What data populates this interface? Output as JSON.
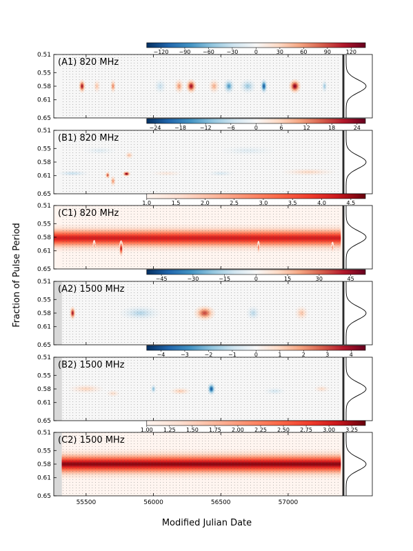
{
  "figure": {
    "xlabel": "Modified Julian Date",
    "ylabel": "Fraction of Pulse Period"
  },
  "chart_data": [
    {
      "type": "heatmap",
      "panel": "A1",
      "label": "(A1) 820 MHz",
      "colormap": "diverging",
      "colors": [
        "#053061",
        "#f7f7f7",
        "#67001f"
      ],
      "cbar_ticks": [
        "−120",
        "−90",
        "−60",
        "−30",
        "0",
        "30",
        "60",
        "90",
        "120"
      ],
      "cbar_range": [
        -138,
        138
      ],
      "cbar_start_mjd": 55950,
      "shade_before_mjd": null,
      "features": [
        {
          "mjd": 55470,
          "phase": 0.58,
          "value": 120,
          "width": 25,
          "height": 0.015
        },
        {
          "mjd": 55580,
          "phase": 0.58,
          "value": 40,
          "width": 25,
          "height": 0.015
        },
        {
          "mjd": 55700,
          "phase": 0.58,
          "value": 70,
          "width": 20,
          "height": 0.015
        },
        {
          "mjd": 56050,
          "phase": 0.58,
          "value": -30,
          "width": 45,
          "height": 0.016
        },
        {
          "mjd": 56190,
          "phase": 0.58,
          "value": 60,
          "width": 35,
          "height": 0.016
        },
        {
          "mjd": 56280,
          "phase": 0.58,
          "value": 120,
          "width": 40,
          "height": 0.016
        },
        {
          "mjd": 56450,
          "phase": 0.58,
          "value": 50,
          "width": 40,
          "height": 0.016
        },
        {
          "mjd": 56560,
          "phase": 0.58,
          "value": -80,
          "width": 40,
          "height": 0.016
        },
        {
          "mjd": 56700,
          "phase": 0.58,
          "value": -50,
          "width": 60,
          "height": 0.016
        },
        {
          "mjd": 56820,
          "phase": 0.58,
          "value": -120,
          "width": 25,
          "height": 0.016
        },
        {
          "mjd": 57050,
          "phase": 0.58,
          "value": 130,
          "width": 45,
          "height": 0.016
        },
        {
          "mjd": 57270,
          "phase": 0.58,
          "value": -50,
          "width": 20,
          "height": 0.014
        }
      ]
    },
    {
      "type": "heatmap",
      "panel": "B1",
      "label": "(B1) 820 MHz",
      "colormap": "diverging",
      "colors": [
        "#053061",
        "#f7f7f7",
        "#67001f"
      ],
      "cbar_ticks": [
        "−24",
        "−18",
        "−12",
        "−6",
        "0",
        "6",
        "12",
        "18",
        "24"
      ],
      "cbar_range": [
        -26,
        26
      ],
      "cbar_start_mjd": 55950,
      "shade_before_mjd": null,
      "features": [
        {
          "mjd": 55400,
          "phase": 0.605,
          "value": -6,
          "width": 120,
          "height": 0.006
        },
        {
          "mjd": 55660,
          "phase": 0.609,
          "value": 18,
          "width": 18,
          "height": 0.008
        },
        {
          "mjd": 55700,
          "phase": 0.622,
          "value": 12,
          "width": 20,
          "height": 0.012
        },
        {
          "mjd": 55800,
          "phase": 0.606,
          "value": 26,
          "width": 30,
          "height": 0.006
        },
        {
          "mjd": 55820,
          "phase": 0.565,
          "value": 8,
          "width": 30,
          "height": 0.008
        },
        {
          "mjd": 55600,
          "phase": 0.555,
          "value": -3,
          "width": 120,
          "height": 0.008
        },
        {
          "mjd": 56100,
          "phase": 0.605,
          "value": 3,
          "width": 120,
          "height": 0.006
        },
        {
          "mjd": 56500,
          "phase": 0.605,
          "value": -4,
          "width": 100,
          "height": 0.006
        },
        {
          "mjd": 56700,
          "phase": 0.555,
          "value": -3,
          "width": 200,
          "height": 0.01
        },
        {
          "mjd": 57150,
          "phase": 0.602,
          "value": 5,
          "width": 200,
          "height": 0.008
        }
      ]
    },
    {
      "type": "heatmap",
      "panel": "C1",
      "label": "(C1) 820 MHz",
      "colormap": "sequential",
      "colors": [
        "#fff5f0",
        "#67000d"
      ],
      "cbar_ticks": [
        "1.0",
        "1.5",
        "2.0",
        "2.5",
        "3.0",
        "3.5",
        "4.0",
        "4.5"
      ],
      "cbar_range": [
        1.0,
        4.75
      ],
      "cbar_start_mjd": 55950,
      "shade_before_mjd": null,
      "band": {
        "center": 0.582,
        "halfwidth": 0.016,
        "peak": 4.2
      },
      "features": [
        {
          "mjd": 55560,
          "phase": 0.598,
          "value": 2.8,
          "width": 8,
          "height": 0.012
        },
        {
          "mjd": 55760,
          "phase": 0.605,
          "value": 4.7,
          "width": 15,
          "height": 0.018
        },
        {
          "mjd": 56780,
          "phase": 0.602,
          "value": 3.3,
          "width": 8,
          "height": 0.014
        },
        {
          "mjd": 57330,
          "phase": 0.602,
          "value": 2.8,
          "width": 6,
          "height": 0.012
        }
      ]
    },
    {
      "type": "heatmap",
      "panel": "A2",
      "label": "(A2) 1500 MHz",
      "colormap": "diverging",
      "colors": [
        "#053061",
        "#f7f7f7",
        "#67001f"
      ],
      "cbar_ticks": [
        "−45",
        "−30",
        "−15",
        "0",
        "15",
        "30",
        "45"
      ],
      "cbar_range": [
        -52,
        52
      ],
      "cbar_start_mjd": 55950,
      "shade_before_mjd": 55320,
      "features": [
        {
          "mjd": 55400,
          "phase": 0.58,
          "value": 45,
          "width": 22,
          "height": 0.015
        },
        {
          "mjd": 55900,
          "phase": 0.58,
          "value": -15,
          "width": 150,
          "height": 0.016
        },
        {
          "mjd": 56380,
          "phase": 0.58,
          "value": 35,
          "width": 80,
          "height": 0.017
        },
        {
          "mjd": 56740,
          "phase": 0.58,
          "value": -14,
          "width": 50,
          "height": 0.016
        },
        {
          "mjd": 57100,
          "phase": 0.58,
          "value": 15,
          "width": 50,
          "height": 0.016
        }
      ]
    },
    {
      "type": "heatmap",
      "panel": "B2",
      "label": "(B2) 1500 MHz",
      "colormap": "diverging",
      "colors": [
        "#053061",
        "#f7f7f7",
        "#67001f"
      ],
      "cbar_ticks": [
        "−4",
        "−3",
        "−2",
        "−1",
        "0",
        "1",
        "2",
        "3",
        "4"
      ],
      "cbar_range": [
        -4.6,
        4.6
      ],
      "cbar_start_mjd": 55950,
      "shade_before_mjd": 55320,
      "features": [
        {
          "mjd": 55500,
          "phase": 0.58,
          "value": 1,
          "width": 130,
          "height": 0.01
        },
        {
          "mjd": 55700,
          "phase": 0.59,
          "value": 0.8,
          "width": 50,
          "height": 0.008
        },
        {
          "mjd": 56000,
          "phase": 0.58,
          "value": -2,
          "width": 20,
          "height": 0.01
        },
        {
          "mjd": 56200,
          "phase": 0.585,
          "value": 1.2,
          "width": 80,
          "height": 0.008
        },
        {
          "mjd": 56430,
          "phase": 0.58,
          "value": -4,
          "width": 30,
          "height": 0.014
        },
        {
          "mjd": 56900,
          "phase": 0.585,
          "value": -0.8,
          "width": 80,
          "height": 0.008
        },
        {
          "mjd": 57250,
          "phase": 0.58,
          "value": 0.8,
          "width": 60,
          "height": 0.008
        }
      ]
    },
    {
      "type": "heatmap",
      "panel": "C2",
      "label": "(C2) 1500 MHz",
      "colormap": "sequential",
      "colors": [
        "#fff5f0",
        "#67000d"
      ],
      "cbar_ticks": [
        "1.00",
        "1.25",
        "1.50",
        "1.75",
        "2.00",
        "2.25",
        "2.50",
        "2.75",
        "3.00",
        "3.25"
      ],
      "cbar_range": [
        1.0,
        3.4
      ],
      "cbar_start_mjd": 55950,
      "shade_before_mjd": 55320,
      "band": {
        "center": 0.58,
        "halfwidth": 0.017,
        "peak": 3.3
      },
      "features": []
    }
  ],
  "axes": {
    "xlim": [
      55260,
      57410
    ],
    "xticks": [
      "55500",
      "56000",
      "56500",
      "57000"
    ],
    "ylim": [
      0.51,
      0.65
    ],
    "yticks": [
      "0.51",
      "0.55",
      "0.58",
      "0.61",
      "0.65"
    ],
    "obs_mjd_start": 55330,
    "obs_mjd_end": 57390,
    "obs_spacing_days": 24,
    "profile": {
      "center": 0.58,
      "width": 0.014
    }
  }
}
